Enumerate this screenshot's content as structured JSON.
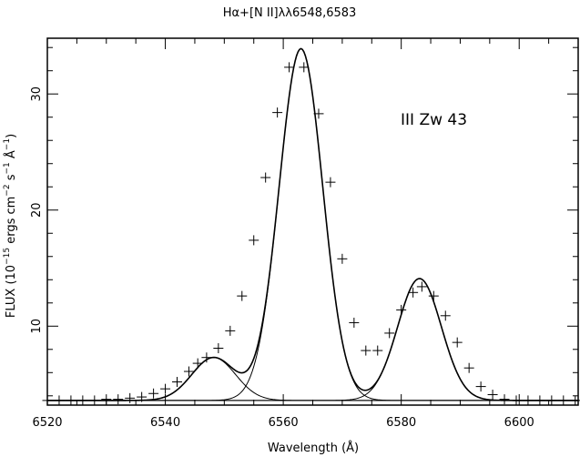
{
  "chart_data": {
    "type": "line",
    "title_html": "Hα+[N II]λλ6548,6583",
    "annotation": "III Zw 43",
    "xlabel": "Wavelength (Å)",
    "ylabel": {
      "base": "FLUX (10",
      "exp1": "−15",
      "mid1": " ergs cm",
      "exp2": "−2",
      "mid2": " s",
      "exp3": "−1",
      "mid3": " Å",
      "exp4": "−1",
      "end": ")"
    },
    "xlim": [
      6520,
      6610
    ],
    "ylim": [
      3.2,
      34.8
    ],
    "x_ticks": [
      6520,
      6540,
      6560,
      6580,
      6600
    ],
    "y_ticks": [
      10,
      20,
      30
    ],
    "continuum": 3.6,
    "components": [
      {
        "center": 6548.2,
        "amplitude": 3.7,
        "sigma": 3.7
      },
      {
        "center": 6563.0,
        "amplitude": 30.3,
        "sigma": 3.7
      },
      {
        "center": 6583.1,
        "amplitude": 10.5,
        "sigma": 3.7
      }
    ],
    "observed": {
      "x": [
        6520,
        6522,
        6524,
        6526,
        6528,
        6530,
        6532,
        6534,
        6536,
        6538,
        6540,
        6542,
        6544,
        6545.5,
        6547,
        6549,
        6551,
        6553,
        6555,
        6557,
        6559,
        6561,
        6563.5,
        6566,
        6568,
        6570,
        6572,
        6574,
        6576,
        6578,
        6580,
        6582,
        6583.5,
        6585.5,
        6587.5,
        6589.5,
        6591.5,
        6593.5,
        6595.5,
        6597.5,
        6599.5,
        6601.5,
        6603.5,
        6605.5,
        6607.5,
        6609.5
      ],
      "y": [
        3.6,
        3.6,
        3.6,
        3.6,
        3.6,
        3.7,
        3.7,
        3.8,
        3.9,
        4.2,
        4.6,
        5.2,
        6.1,
        6.8,
        7.3,
        8.1,
        9.6,
        12.6,
        17.4,
        22.8,
        28.4,
        32.3,
        32.3,
        28.3,
        22.4,
        15.8,
        10.3,
        7.9,
        7.9,
        9.4,
        11.4,
        12.9,
        13.4,
        12.6,
        10.9,
        8.6,
        6.4,
        4.8,
        4.1,
        3.7,
        3.6,
        3.6,
        3.6,
        3.6,
        3.6,
        3.6
      ]
    }
  }
}
